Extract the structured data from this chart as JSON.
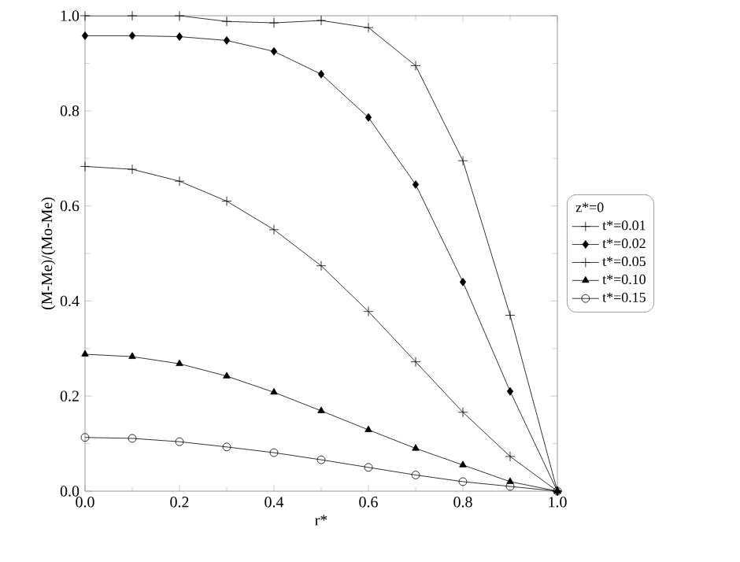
{
  "chart_data": {
    "type": "line",
    "xlabel": "r*",
    "ylabel": "(M-Me)/(Mo-Me)",
    "legend_title": "z*=0",
    "legend": "right",
    "x": [
      0.0,
      0.1,
      0.2,
      0.3,
      0.4,
      0.5,
      0.6,
      0.7,
      0.8,
      0.9,
      1.0
    ],
    "series": [
      {
        "name": "t*=0.01",
        "color": "#000000",
        "marker": "cross",
        "values": [
          1.0,
          1.0,
          1.0,
          0.988,
          0.985,
          0.99,
          0.975,
          0.895,
          0.695,
          0.37,
          0.0
        ]
      },
      {
        "name": "t*=0.02",
        "color": "#000000",
        "marker": "diamond",
        "values": [
          0.958,
          0.958,
          0.956,
          0.948,
          0.925,
          0.877,
          0.786,
          0.645,
          0.44,
          0.21,
          0.0
        ]
      },
      {
        "name": "t*=0.05",
        "color": "#000000",
        "marker": "cross",
        "values": [
          0.683,
          0.677,
          0.652,
          0.61,
          0.55,
          0.474,
          0.378,
          0.272,
          0.166,
          0.073,
          0.0
        ]
      },
      {
        "name": "t*=0.10",
        "color": "#000000",
        "marker": "triangle",
        "values": [
          0.288,
          0.283,
          0.268,
          0.242,
          0.208,
          0.169,
          0.129,
          0.09,
          0.055,
          0.02,
          0.0
        ]
      },
      {
        "name": "t*=0.15",
        "color": "#000000",
        "marker": "circle",
        "values": [
          0.113,
          0.111,
          0.104,
          0.093,
          0.081,
          0.066,
          0.05,
          0.034,
          0.02,
          0.01,
          0.0
        ]
      }
    ],
    "xlim": [
      0.0,
      1.0
    ],
    "xticks": [
      {
        "value": 0.0,
        "label": "0.0"
      },
      {
        "value": 0.2,
        "label": "0.2"
      },
      {
        "value": 0.4,
        "label": "0.4"
      },
      {
        "value": 0.6,
        "label": "0.6"
      },
      {
        "value": 0.8,
        "label": "0.8"
      },
      {
        "value": 1.0,
        "label": "1.0"
      }
    ],
    "ylim": [
      0.0,
      1.0
    ],
    "yticks": [
      {
        "value": 0.0,
        "label": "0.0"
      },
      {
        "value": 0.2,
        "label": "0.2"
      },
      {
        "value": 0.4,
        "label": "0.4"
      },
      {
        "value": 0.6,
        "label": "0.6"
      },
      {
        "value": 0.8,
        "label": "0.8"
      },
      {
        "value": 1.0,
        "label": "1.0"
      }
    ],
    "grid": false,
    "line_style": "solid"
  }
}
